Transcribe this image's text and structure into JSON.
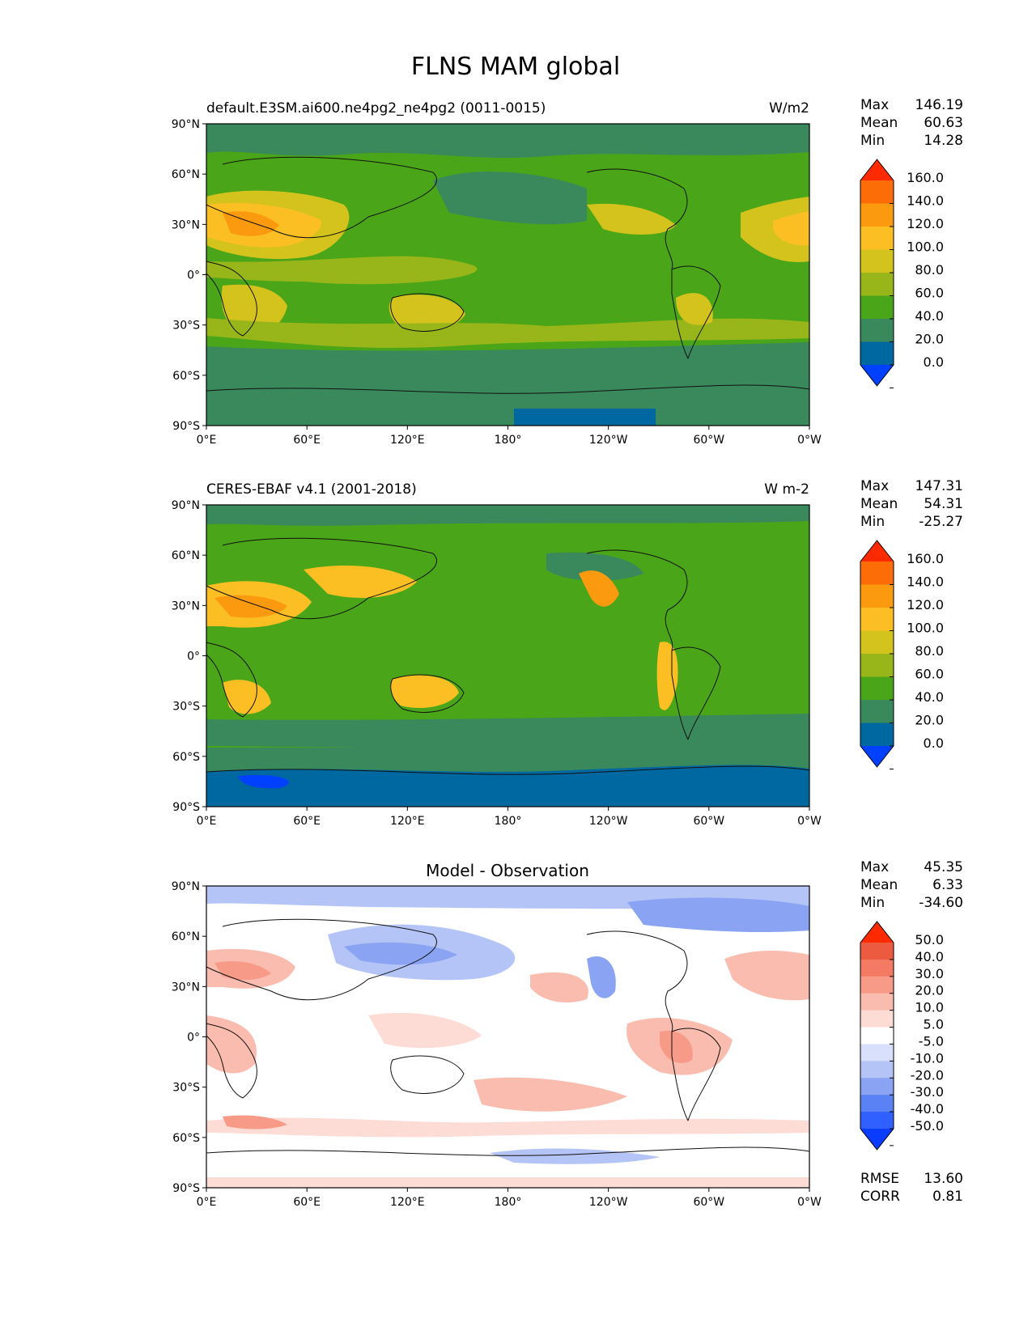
{
  "figure": {
    "title": "FLNS MAM global"
  },
  "axes": {
    "lat_ticks": [
      "90°N",
      "60°N",
      "30°N",
      "0°",
      "30°S",
      "60°S",
      "90°S"
    ],
    "lon_ticks": [
      "0°E",
      "60°E",
      "120°E",
      "180°",
      "120°W",
      "60°W",
      "0°W"
    ]
  },
  "chart_data": [
    {
      "type": "heatmap",
      "panel": "test",
      "title": "",
      "left_title": "default.E3SM.ai600.ne4pg2_ne4pg2 (0011-0015)",
      "units": "W/m2",
      "stats": {
        "max_label": "Max",
        "max": "146.19",
        "mean_label": "Mean",
        "mean": "60.63",
        "min_label": "Min",
        "min": "14.28"
      },
      "levels": [
        0,
        20,
        40,
        60,
        80,
        100,
        120,
        140,
        160
      ],
      "colorbar_labels": [
        "160.0",
        "140.0",
        "120.0",
        "100.0",
        "80.0",
        "60.0",
        "40.0",
        "20.0",
        "0.0"
      ],
      "colors": [
        "#0040ff",
        "#0068a0",
        "#39895c",
        "#4aa618",
        "#98b51a",
        "#d4c21d",
        "#fbbf24",
        "#fb9a0f",
        "#fc6d08",
        "#ff2a00"
      ],
      "xlim": [
        0,
        360
      ],
      "ylim": [
        -90,
        90
      ]
    },
    {
      "type": "heatmap",
      "panel": "reference",
      "title": "",
      "left_title": "CERES-EBAF v4.1 (2001-2018)",
      "units": "W m-2",
      "stats": {
        "max_label": "Max",
        "max": "147.31",
        "mean_label": "Mean",
        "mean": "54.31",
        "min_label": "Min",
        "min": "-25.27"
      },
      "levels": [
        0,
        20,
        40,
        60,
        80,
        100,
        120,
        140,
        160
      ],
      "colorbar_labels": [
        "160.0",
        "140.0",
        "120.0",
        "100.0",
        "80.0",
        "60.0",
        "40.0",
        "20.0",
        "0.0"
      ],
      "colors": [
        "#0040ff",
        "#0068a0",
        "#39895c",
        "#4aa618",
        "#98b51a",
        "#d4c21d",
        "#fbbf24",
        "#fb9a0f",
        "#fc6d08",
        "#ff2a00"
      ],
      "xlim": [
        0,
        360
      ],
      "ylim": [
        -90,
        90
      ]
    },
    {
      "type": "heatmap",
      "panel": "difference",
      "title": "Model - Observation",
      "left_title": "",
      "units": "",
      "stats": {
        "max_label": "Max",
        "max": "45.35",
        "mean_label": "Mean",
        "mean": "6.33",
        "min_label": "Min",
        "min": "-34.60"
      },
      "metrics": {
        "rmse_label": "RMSE",
        "rmse": "13.60",
        "corr_label": "CORR",
        "corr": "0.81"
      },
      "levels": [
        -50,
        -40,
        -30,
        -20,
        -10,
        -5,
        5,
        10,
        20,
        30,
        40,
        50
      ],
      "colorbar_labels": [
        "50.0",
        "40.0",
        "30.0",
        "20.0",
        "10.0",
        "5.0",
        "-5.0",
        "-10.0",
        "-20.0",
        "-30.0",
        "-40.0",
        "-50.0"
      ],
      "colors": [
        "#0a3cff",
        "#3060ff",
        "#5a82f5",
        "#8aa4f3",
        "#b4c4f7",
        "#d8e0fb",
        "#ffffff",
        "#fddcd6",
        "#fbbcb0",
        "#f89a88",
        "#f47a64",
        "#ec5a40",
        "#ff2a00"
      ],
      "xlim": [
        0,
        360
      ],
      "ylim": [
        -90,
        90
      ]
    }
  ]
}
